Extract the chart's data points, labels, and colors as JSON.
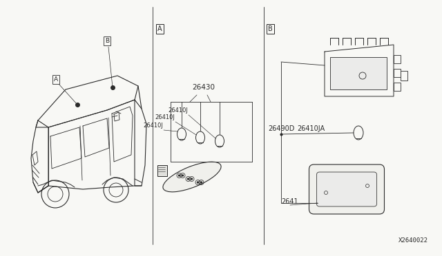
{
  "bg_color": "#f8f8f5",
  "line_color": "#2a2a2a",
  "text_color": "#2a2a2a",
  "diagram_id": "X2640022",
  "part_numbers": {
    "lamp_assembly": "26430",
    "bulb1": "26410J",
    "bulb2": "26410J",
    "bulb3": "26410J",
    "room_lamp": "26490D",
    "bulb_ja": "26410JA",
    "lens": "2641",
    "ref_a": "A",
    "ref_b": "B"
  },
  "fig_width": 6.4,
  "fig_height": 3.72,
  "dpi": 100
}
